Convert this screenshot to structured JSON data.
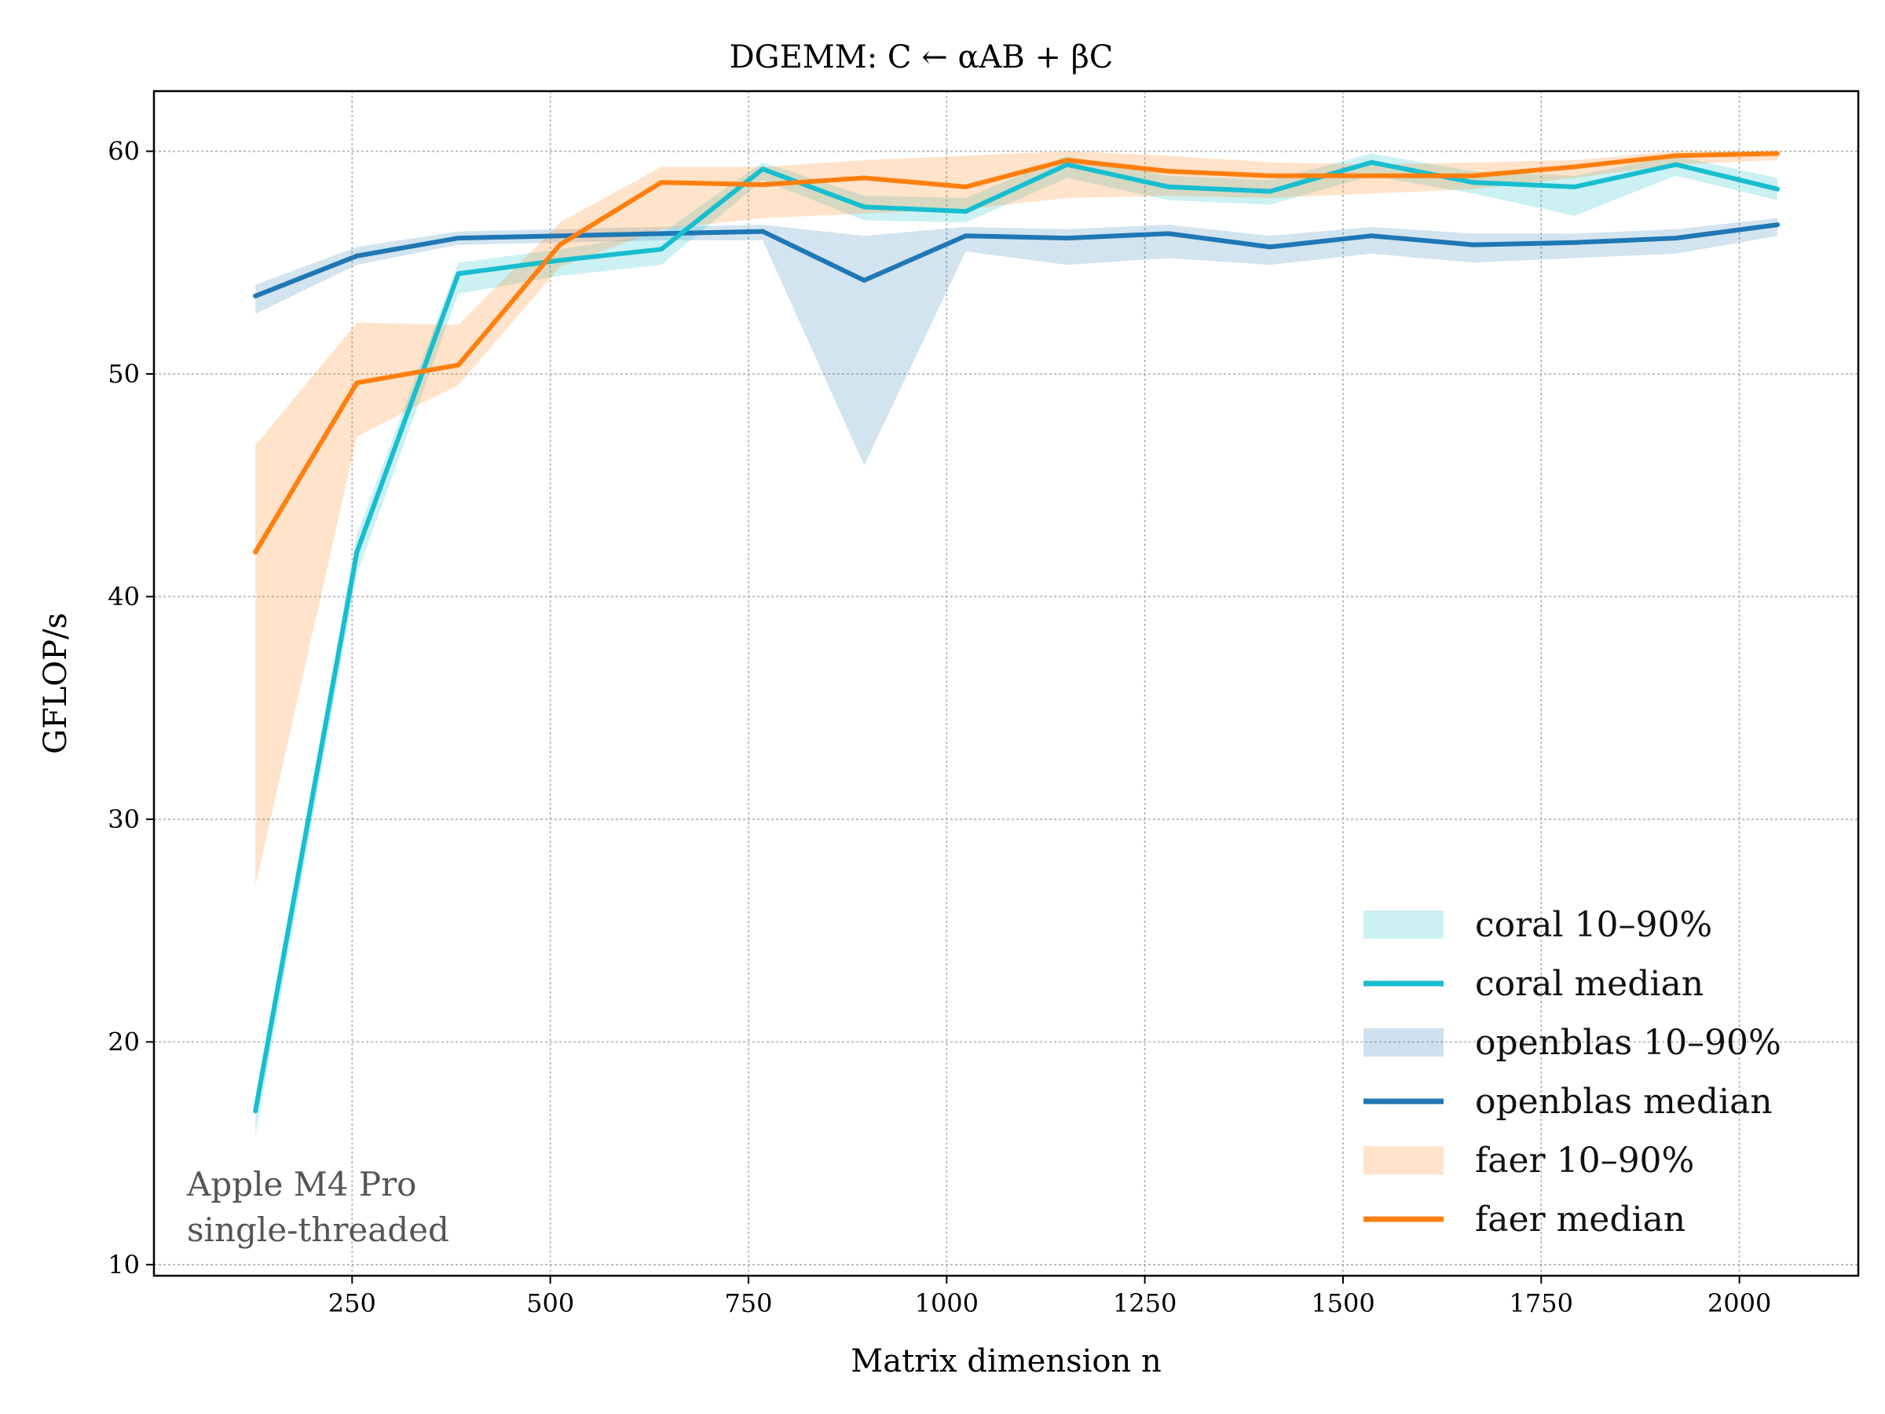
{
  "chart_data": {
    "type": "line",
    "title": "DGEMM: C ← αAB + βC",
    "xlabel": "Matrix dimension n",
    "ylabel": "GFLOP/s",
    "xlim": [
      0,
      2150
    ],
    "ylim": [
      9.5,
      62.7
    ],
    "xticks": [
      250,
      500,
      750,
      1000,
      1250,
      1500,
      1750,
      2000
    ],
    "yticks": [
      10,
      20,
      30,
      40,
      50,
      60
    ],
    "grid": true,
    "legend_position": "bottom-right",
    "annotation": [
      "Apple M4 Pro",
      "single-threaded"
    ],
    "x": [
      128,
      256,
      384,
      512,
      640,
      768,
      896,
      1024,
      1152,
      1280,
      1408,
      1536,
      1664,
      1792,
      1920,
      2048
    ],
    "series": [
      {
        "name": "coral",
        "color": "#17becf",
        "band_label": "coral 10–90%",
        "median_label": "coral median",
        "median": [
          16.9,
          42.0,
          54.5,
          55.1,
          55.6,
          59.2,
          57.5,
          57.3,
          59.4,
          58.4,
          58.2,
          59.5,
          58.6,
          58.4,
          59.4,
          58.3
        ],
        "p10": [
          15.8,
          41.0,
          53.6,
          54.4,
          54.9,
          58.7,
          56.9,
          56.8,
          58.8,
          57.8,
          57.6,
          58.9,
          58.1,
          57.1,
          58.9,
          57.8
        ],
        "p90": [
          17.5,
          42.8,
          55.0,
          55.6,
          56.3,
          59.5,
          58.0,
          57.9,
          59.8,
          58.9,
          58.7,
          59.9,
          59.1,
          58.9,
          59.8,
          58.8
        ]
      },
      {
        "name": "openblas",
        "color": "#1f77b4",
        "band_label": "openblas 10–90%",
        "median_label": "openblas median",
        "median": [
          53.5,
          55.3,
          56.1,
          56.2,
          56.3,
          56.4,
          54.2,
          56.2,
          56.1,
          56.3,
          55.7,
          56.2,
          55.8,
          55.9,
          56.1,
          56.7
        ],
        "p10": [
          52.7,
          54.9,
          55.8,
          55.9,
          56.0,
          56.0,
          45.9,
          55.5,
          54.9,
          55.2,
          54.9,
          55.4,
          55.0,
          55.2,
          55.4,
          56.2
        ],
        "p90": [
          54.0,
          55.7,
          56.4,
          56.5,
          56.6,
          56.7,
          56.2,
          56.6,
          56.5,
          56.7,
          56.2,
          56.6,
          56.3,
          56.3,
          56.5,
          57.0
        ]
      },
      {
        "name": "faer",
        "color": "#ff7f0e",
        "band_label": "faer 10–90%",
        "median_label": "faer median",
        "median": [
          42.0,
          49.6,
          50.4,
          55.8,
          58.6,
          58.5,
          58.8,
          58.4,
          59.6,
          59.1,
          58.9,
          58.9,
          58.9,
          59.3,
          59.8,
          59.9
        ],
        "p10": [
          27.0,
          47.2,
          49.5,
          54.8,
          56.5,
          57.0,
          57.2,
          57.4,
          57.9,
          58.0,
          57.9,
          58.1,
          58.3,
          58.8,
          59.4,
          59.6
        ],
        "p90": [
          46.8,
          52.3,
          52.2,
          56.8,
          59.3,
          59.3,
          59.6,
          59.8,
          60.0,
          59.8,
          59.5,
          59.4,
          59.5,
          59.6,
          60.0,
          60.0
        ]
      }
    ]
  }
}
